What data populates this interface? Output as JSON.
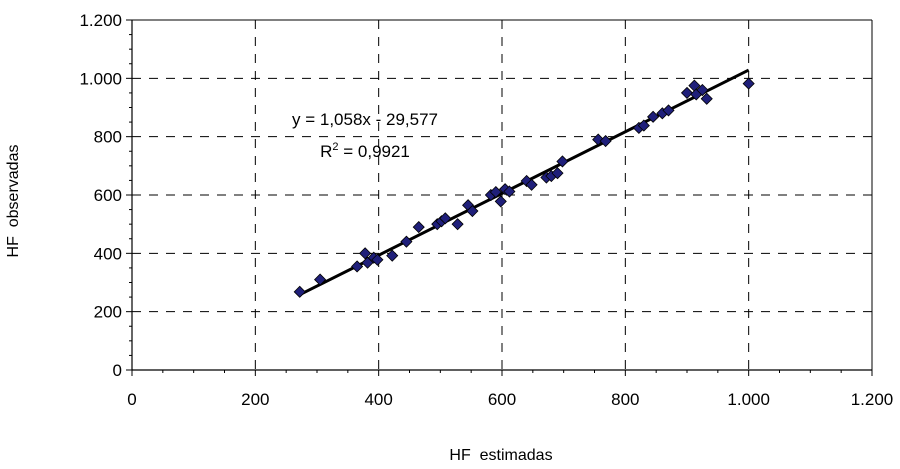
{
  "chart_data": {
    "type": "scatter",
    "xlabel": "HF  estimadas",
    "ylabel": "HF  observadas",
    "xlim": [
      0,
      1200
    ],
    "ylim": [
      0,
      1200
    ],
    "x_ticks": [
      0,
      200,
      400,
      600,
      800,
      1000,
      1200
    ],
    "x_tick_labels": [
      "0",
      "200",
      "400",
      "600",
      "800",
      "1.000",
      "1.200"
    ],
    "y_ticks": [
      0,
      200,
      400,
      600,
      800,
      1000,
      1200
    ],
    "y_tick_labels": [
      "0",
      "200",
      "400",
      "600",
      "800",
      "1.000",
      "1.200"
    ],
    "grid": true,
    "marker_color": "#1f1f7a",
    "line_color": "#000000",
    "series": [
      {
        "points": [
          [
            272,
            268
          ],
          [
            305,
            310
          ],
          [
            365,
            355
          ],
          [
            378,
            400
          ],
          [
            382,
            368
          ],
          [
            392,
            385
          ],
          [
            398,
            378
          ],
          [
            422,
            392
          ],
          [
            445,
            440
          ],
          [
            465,
            490
          ],
          [
            495,
            500
          ],
          [
            502,
            510
          ],
          [
            508,
            520
          ],
          [
            528,
            500
          ],
          [
            545,
            565
          ],
          [
            552,
            545
          ],
          [
            582,
            600
          ],
          [
            590,
            610
          ],
          [
            598,
            578
          ],
          [
            605,
            620
          ],
          [
            612,
            612
          ],
          [
            640,
            648
          ],
          [
            648,
            635
          ],
          [
            672,
            660
          ],
          [
            680,
            665
          ],
          [
            690,
            675
          ],
          [
            698,
            715
          ],
          [
            756,
            790
          ],
          [
            768,
            785
          ],
          [
            822,
            830
          ],
          [
            830,
            838
          ],
          [
            845,
            868
          ],
          [
            860,
            880
          ],
          [
            870,
            890
          ],
          [
            900,
            950
          ],
          [
            912,
            975
          ],
          [
            915,
            945
          ],
          [
            925,
            960
          ],
          [
            932,
            930
          ],
          [
            1000,
            982
          ]
        ]
      }
    ],
    "trendline": {
      "slope": 1.058,
      "intercept": -29.577,
      "x_range": [
        272,
        1000
      ],
      "equation_text": "y = 1,058x - 29,577",
      "r2_prefix": "R",
      "r2_sup": "2",
      "r2_suffix": " = 0,9921"
    }
  }
}
